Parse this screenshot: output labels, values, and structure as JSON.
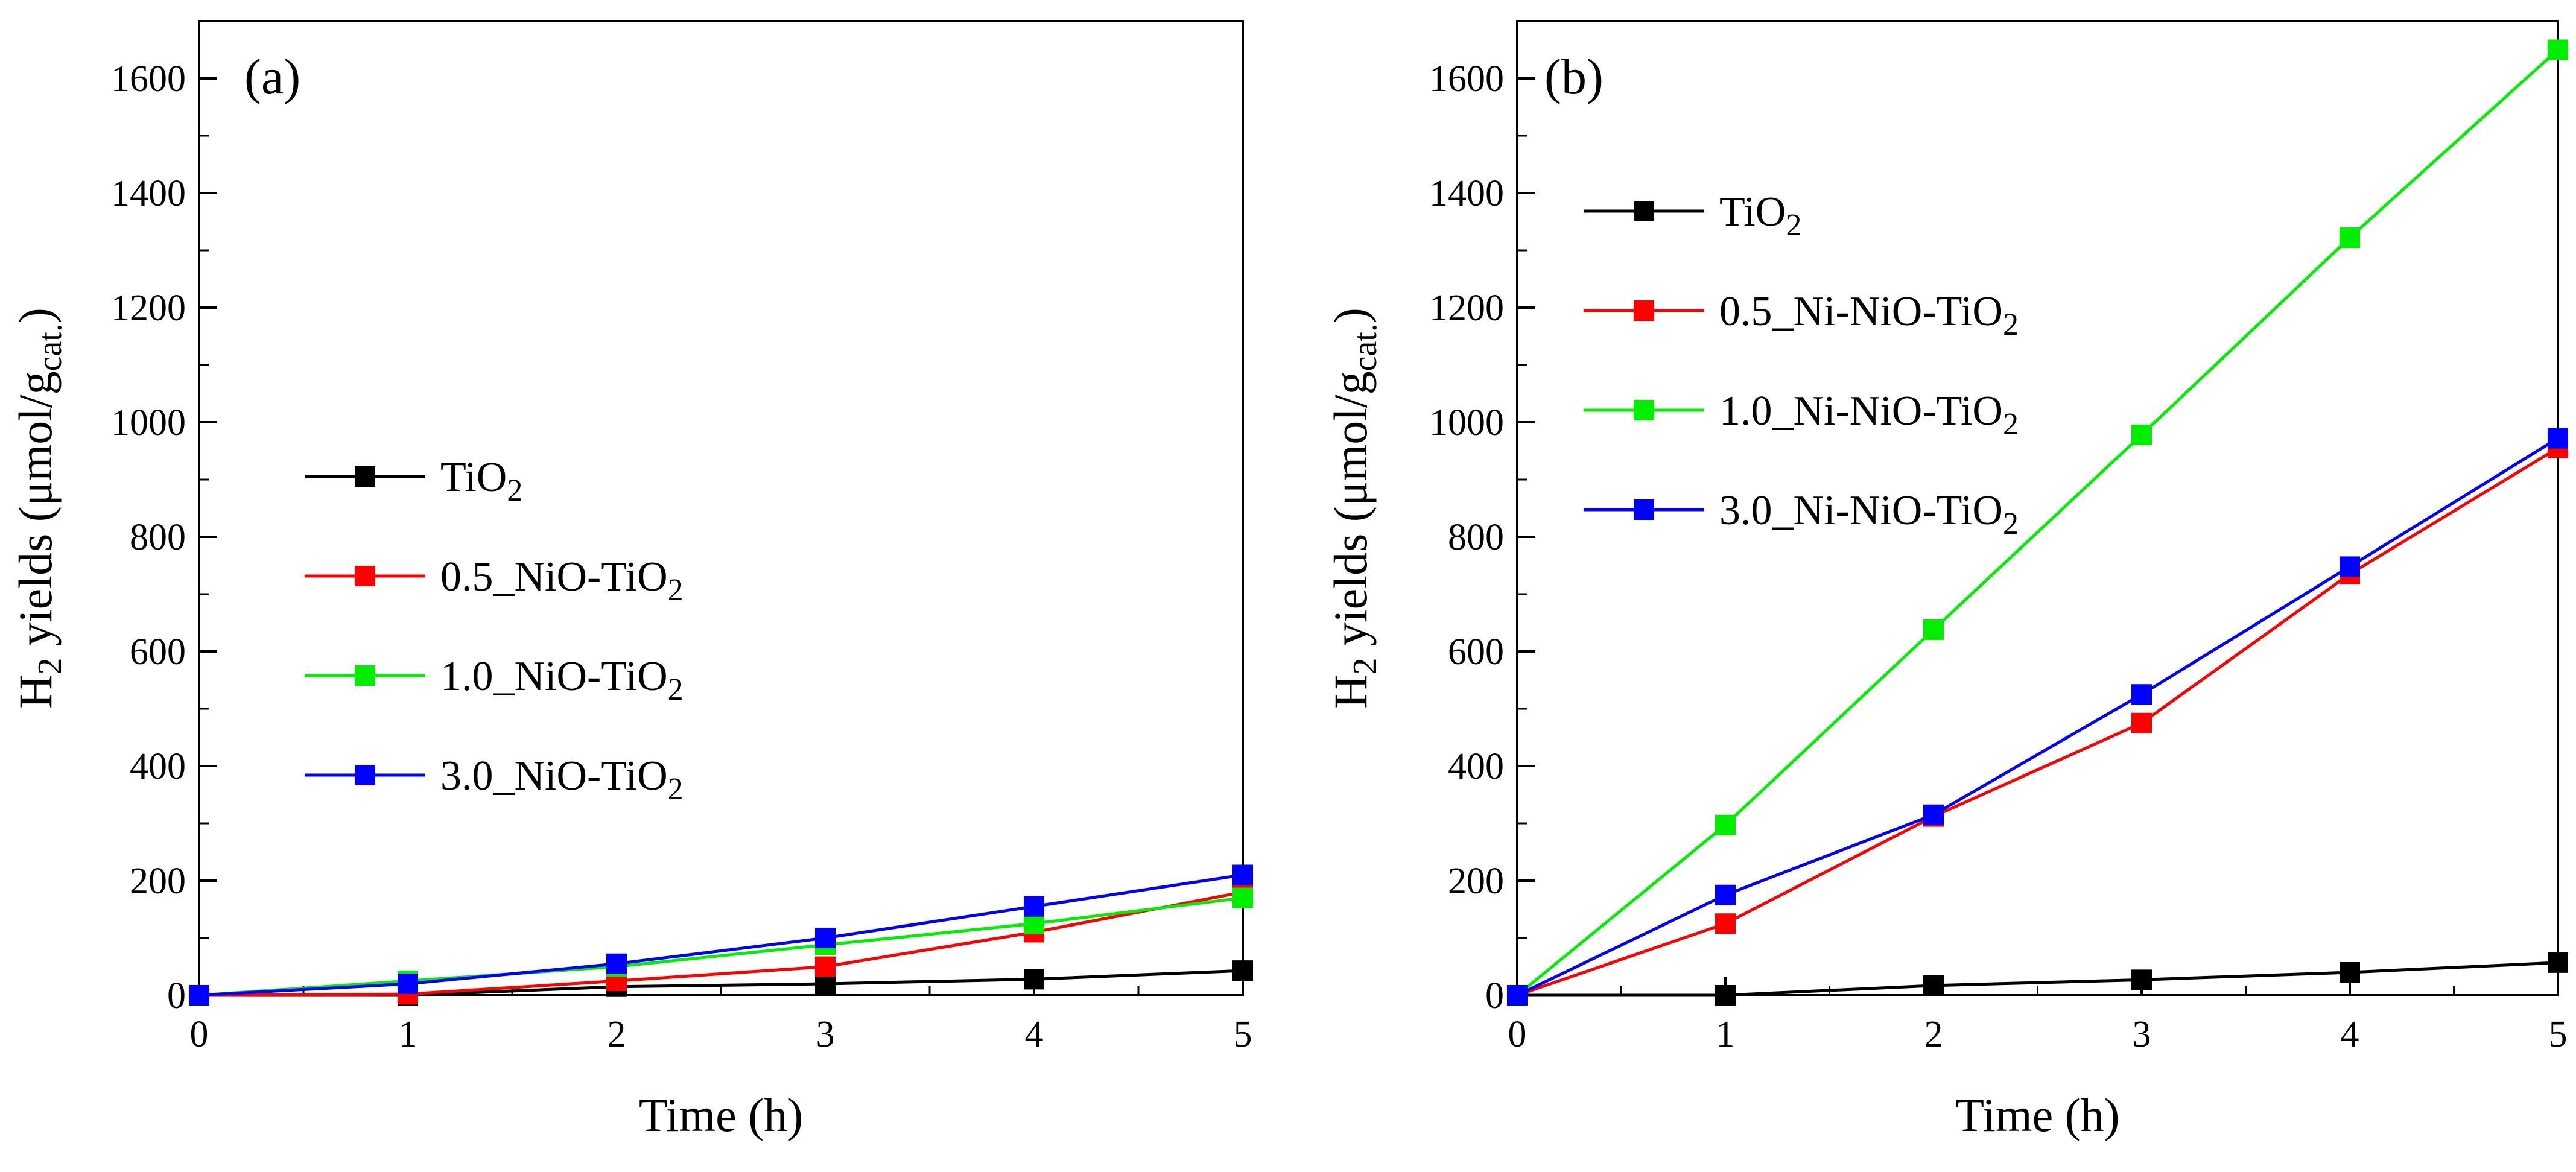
{
  "chart_data": [
    {
      "type": "line",
      "panel_label": "(a)",
      "xlabel": "Time (h)",
      "ylabel": "H2 yields (μmol/gcat.)",
      "ylabel_parts": {
        "pre": "H",
        "sub1": "2",
        "mid": " yields (μmol/g",
        "sub2": "cat.",
        "post": ")"
      },
      "x": [
        0,
        1,
        2,
        3,
        4,
        5
      ],
      "xlim": [
        0,
        5
      ],
      "ylim": [
        0,
        1700
      ],
      "xticks": [
        0,
        1,
        2,
        3,
        4,
        5
      ],
      "yticks": [
        0,
        200,
        400,
        600,
        800,
        1000,
        1200,
        1400,
        1600
      ],
      "grid": false,
      "legend_position": "center-left",
      "series": [
        {
          "name": "TiO2",
          "label_main": "TiO",
          "label_sub": "2",
          "color": "#000000",
          "values": [
            0,
            0,
            15,
            20,
            28,
            43
          ]
        },
        {
          "name": "0.5_NiO-TiO2",
          "label_main": "0.5_NiO-TiO",
          "label_sub": "2",
          "color": "#ff0000",
          "values": [
            0,
            2,
            25,
            50,
            110,
            180
          ]
        },
        {
          "name": "1.0_NiO-TiO2",
          "label_main": "1.0_NiO-TiO",
          "label_sub": "2",
          "color": "#00ee00",
          "values": [
            0,
            25,
            50,
            88,
            125,
            170
          ]
        },
        {
          "name": "3.0_NiO-TiO2",
          "label_main": "3.0_NiO-TiO",
          "label_sub": "2",
          "color": "#0000ff",
          "values": [
            0,
            20,
            55,
            100,
            155,
            210
          ]
        }
      ]
    },
    {
      "type": "line",
      "panel_label": "(b)",
      "xlabel": "Time (h)",
      "ylabel": "H2 yields (μmol/gcat.)",
      "ylabel_parts": {
        "pre": "H",
        "sub1": "2",
        "mid": " yields (μmol/g",
        "sub2": "cat.",
        "post": ")"
      },
      "x": [
        0,
        1,
        2,
        3,
        4,
        5
      ],
      "xlim": [
        0,
        5
      ],
      "ylim": [
        0,
        1700
      ],
      "xticks": [
        0,
        1,
        2,
        3,
        4,
        5
      ],
      "yticks": [
        0,
        200,
        400,
        600,
        800,
        1000,
        1200,
        1400,
        1600
      ],
      "grid": false,
      "legend_position": "upper-left",
      "series": [
        {
          "name": "TiO2",
          "label_main": "TiO",
          "label_sub": "2",
          "color": "#000000",
          "values": [
            0,
            0,
            17,
            27,
            40,
            57
          ]
        },
        {
          "name": "0.5_Ni-NiO-TiO2",
          "label_main": "0.5_Ni-NiO-TiO",
          "label_sub": "2",
          "color": "#ff0000",
          "values": [
            0,
            125,
            312,
            475,
            735,
            955
          ]
        },
        {
          "name": "1.0_Ni-NiO-TiO2",
          "label_main": "1.0_Ni-NiO-TiO",
          "label_sub": "2",
          "color": "#00ee00",
          "values": [
            0,
            297,
            638,
            978,
            1322,
            1650
          ]
        },
        {
          "name": "3.0_Ni-NiO-TiO2",
          "label_main": "3.0_Ni-NiO-TiO",
          "label_sub": "2",
          "color": "#0000ff",
          "values": [
            0,
            175,
            315,
            525,
            748,
            972
          ]
        }
      ]
    }
  ]
}
